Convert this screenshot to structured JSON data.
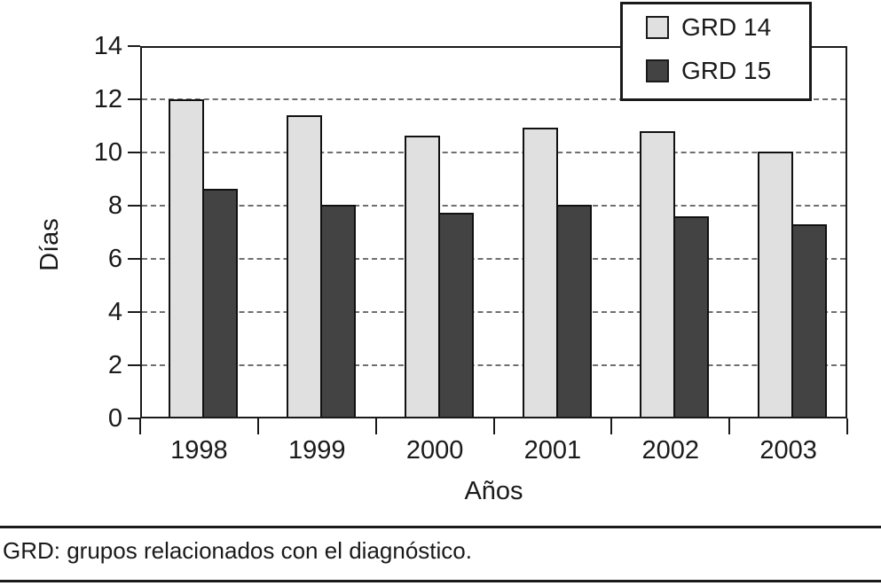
{
  "figure": {
    "footnote": "GRD: grupos relacionados con el diagnóstico."
  },
  "chart_data": {
    "type": "bar",
    "title": "",
    "categories": [
      "1998",
      "1999",
      "2000",
      "2001",
      "2002",
      "2003"
    ],
    "series": [
      {
        "name": "GRD 14",
        "color": "#e0e0e0",
        "values": [
          12.0,
          11.4,
          10.65,
          10.95,
          10.8,
          10.05
        ]
      },
      {
        "name": "GRD 15",
        "color": "#434343",
        "values": [
          8.65,
          8.05,
          7.75,
          8.05,
          7.6,
          7.3
        ]
      }
    ],
    "xlabel": "Años",
    "ylabel": "Días",
    "ylim": [
      0,
      14
    ],
    "ytick_step": 2,
    "grid": "horizontal-dashed",
    "legend_position": "top-right"
  }
}
